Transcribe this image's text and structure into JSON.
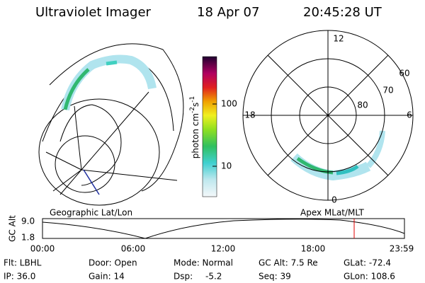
{
  "header": {
    "instrument": "Ultraviolet Imager",
    "date": "18 Apr 07",
    "time": "20:45:28 UT"
  },
  "colorbar": {
    "unit_parts": [
      "photon cm",
      "-2",
      "s",
      "-1"
    ],
    "ticks": [
      "100",
      "10"
    ]
  },
  "polar_plot": {
    "mlt_labels": [
      "12",
      "18",
      "6",
      "0"
    ],
    "mlat_labels": [
      "60",
      "70",
      "80"
    ]
  },
  "altitude_plot": {
    "left_label": "Geographic Lat/Lon",
    "right_label": "Apex MLat/MLT",
    "y_label": "GC Alt",
    "y_ticks": [
      "9.0",
      "1.8"
    ],
    "x_ticks": [
      "00:00",
      "06:00",
      "12:00",
      "18:00",
      "23:59"
    ]
  },
  "footer": {
    "rows": [
      [
        "Flt: LBHL",
        "Door: Open",
        "Mode: Normal",
        "GC Alt: 7.5 Re",
        "GLat: -72.4"
      ],
      [
        "IP: 36.0",
        "Gain: 14",
        "Dsp:",
        "Seq: 39",
        "GLon: 108.6"
      ]
    ],
    "dsp_value": "-5.2"
  }
}
